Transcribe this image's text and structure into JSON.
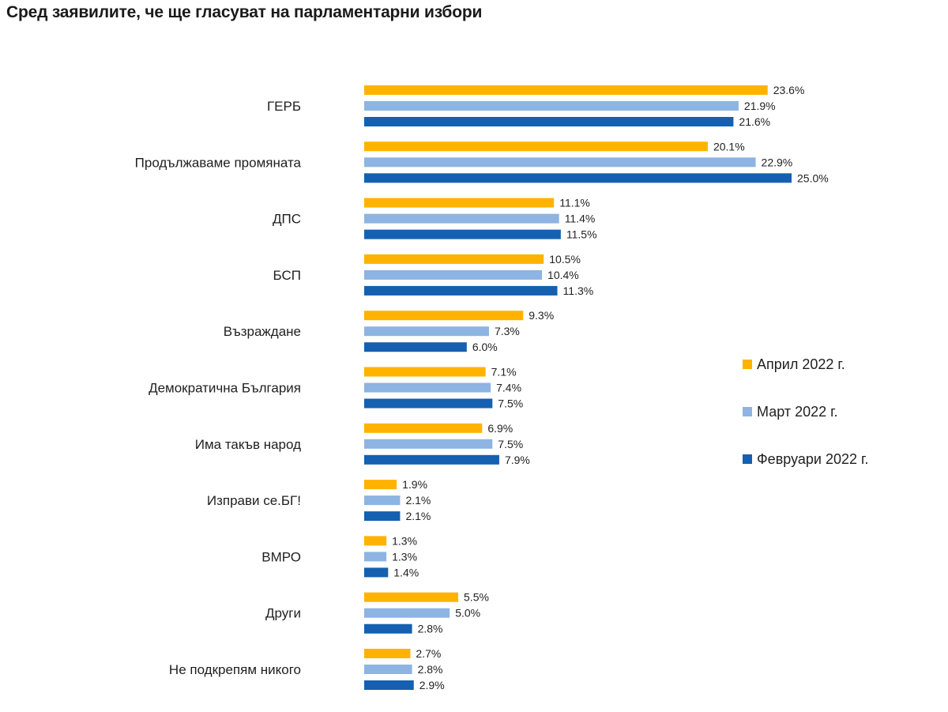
{
  "chart_data": {
    "type": "bar",
    "orientation": "horizontal",
    "title": "Сред заявилите, че ще гласуват на парламентарни избори",
    "categories": [
      "ГЕРБ",
      "Продължаваме промяната",
      "ДПС",
      "БСП",
      "Възраждане",
      "Демократична България",
      "Има такъв народ",
      "Изправи се.БГ!",
      "ВМРО",
      "Други",
      "Не подкрепям никого"
    ],
    "series": [
      {
        "name": "Април 2022 г.",
        "color": "#FFB300",
        "values": [
          23.6,
          20.1,
          11.1,
          10.5,
          9.3,
          7.1,
          6.9,
          1.9,
          1.3,
          5.5,
          2.7
        ],
        "labels": [
          "23.6%",
          "20.1%",
          "11.1%",
          "10.5%",
          "9.3%",
          "7.1%",
          "6.9%",
          "1.9%",
          "1.3%",
          "5.5%",
          "2.7%"
        ]
      },
      {
        "name": "Март 2022 г.",
        "color": "#8DB4E2",
        "values": [
          21.9,
          22.9,
          11.4,
          10.4,
          7.3,
          7.4,
          7.5,
          2.1,
          1.3,
          5.0,
          2.8
        ],
        "labels": [
          "21.9%",
          "22.9%",
          "11.4%",
          "10.4%",
          "7.3%",
          "7.4%",
          "7.5%",
          "2.1%",
          "1.3%",
          "5.0%",
          "2.8%"
        ]
      },
      {
        "name": "Февруари 2022 г.",
        "color": "#1560B0",
        "values": [
          21.6,
          25.0,
          11.5,
          11.3,
          6.0,
          7.5,
          7.9,
          2.1,
          1.4,
          2.8,
          2.9
        ],
        "labels": [
          "21.6%",
          "25.0%",
          "11.5%",
          "11.3%",
          "6.0%",
          "7.5%",
          "7.9%",
          "2.1%",
          "1.4%",
          "2.8%",
          "2.9%"
        ]
      }
    ],
    "xlim": [
      0,
      25
    ],
    "legend_position": "right",
    "grid": false
  }
}
